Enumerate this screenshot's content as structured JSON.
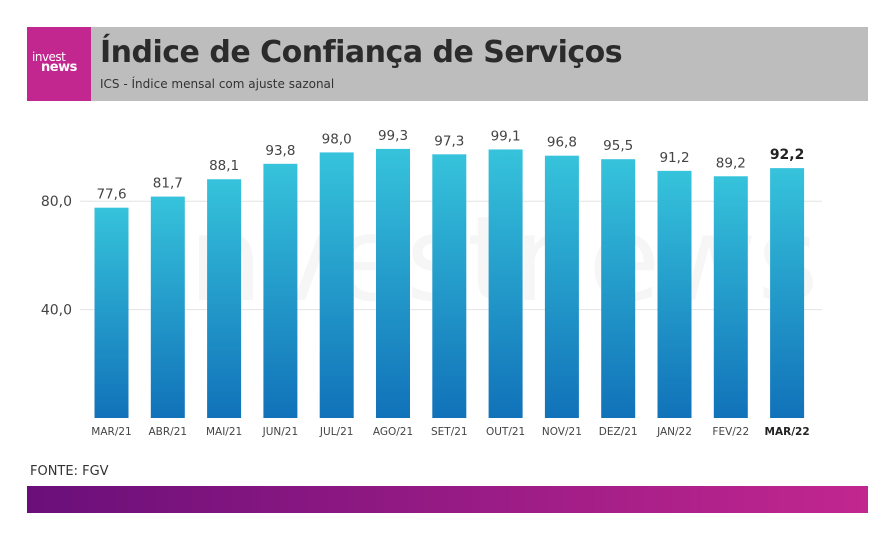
{
  "header": {
    "logo_line1": "invest",
    "logo_line2": "news",
    "title": "Índice de Confiança de Serviços",
    "subtitle": "ICS - Índice mensal com ajuste sazonal"
  },
  "watermark": "investnews",
  "source": "FONTE: FGV",
  "colors": {
    "bar_top": "#36c3db",
    "bar_bottom": "#1172b9",
    "header_bg": "#bdbdbd",
    "logo_bg": "#c2268f",
    "footer_gradient_start": "#6a0f7a",
    "footer_gradient_end": "#c2268f"
  },
  "chart_data": {
    "type": "bar",
    "categories": [
      "MAR/21",
      "ABR/21",
      "MAI/21",
      "JUN/21",
      "JUL/21",
      "AGO/21",
      "SET/21",
      "OUT/21",
      "NOV/21",
      "DEZ/21",
      "JAN/22",
      "FEV/22",
      "MAR/22"
    ],
    "values": [
      77.6,
      81.7,
      88.1,
      93.8,
      98.0,
      99.3,
      97.3,
      99.1,
      96.8,
      95.5,
      91.2,
      89.2,
      92.2
    ],
    "value_labels": [
      "77,6",
      "81,7",
      "88,1",
      "93,8",
      "98,0",
      "99,3",
      "97,3",
      "99,1",
      "96,8",
      "95,5",
      "91,2",
      "89,2",
      "92,2"
    ],
    "highlight_index": 12,
    "yticks": [
      40,
      80
    ],
    "ytick_labels": [
      "40,0",
      "80,0"
    ],
    "ylim": [
      0,
      100
    ],
    "grid": true,
    "title": "",
    "xlabel": "",
    "ylabel": ""
  }
}
